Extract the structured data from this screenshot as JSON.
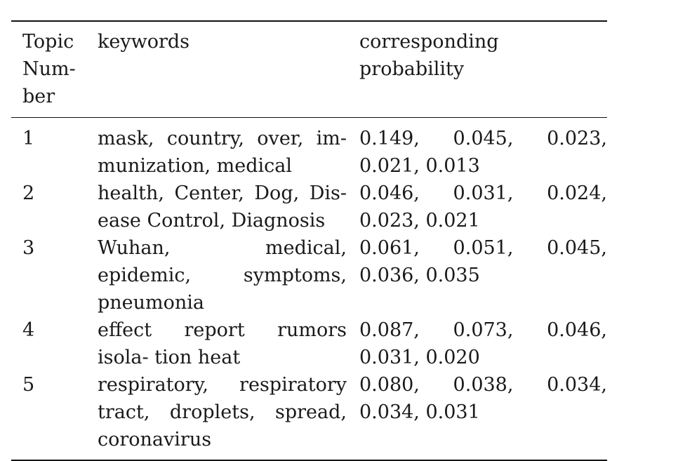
{
  "table": {
    "headers": {
      "topic_number": "Topic Num- ber",
      "keywords": "keywords",
      "probability": "corresponding probability"
    },
    "rows": [
      {
        "topic": "1",
        "keywords": "mask, country, over, im- munization, medical",
        "probabilities": "0.149, 0.045, 0.023, 0.021, 0.013"
      },
      {
        "topic": "2",
        "keywords": "health, Center, Dog, Dis- ease Control, Diagnosis",
        "probabilities": "0.046, 0.031, 0.024, 0.023, 0.021"
      },
      {
        "topic": "3",
        "keywords": "Wuhan, medical, epidemic, symptoms, pneumonia",
        "probabilities": "0.061, 0.051, 0.045, 0.036, 0.035"
      },
      {
        "topic": "4",
        "keywords": "effect report rumors isola- tion heat",
        "probabilities": "0.087, 0.073, 0.046, 0.031, 0.020"
      },
      {
        "topic": "5",
        "keywords": "respiratory, respiratory tract, droplets, spread, coronavirus",
        "probabilities": "0.080, 0.038, 0.034, 0.034, 0.031"
      }
    ]
  }
}
